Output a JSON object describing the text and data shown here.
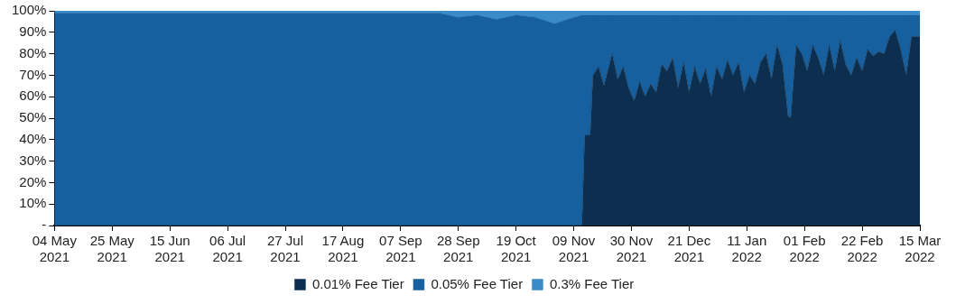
{
  "chart_data": {
    "type": "area",
    "stacked": true,
    "legend": "bottom",
    "grid": false,
    "marker": "none",
    "x": [
      "2021-05-04",
      "2021-05-18",
      "2021-06-01",
      "2021-06-15",
      "2021-06-29",
      "2021-07-13",
      "2021-07-27",
      "2021-08-10",
      "2021-08-24",
      "2021-09-07",
      "2021-09-21",
      "2021-09-28",
      "2021-10-05",
      "2021-10-12",
      "2021-10-19",
      "2021-10-26",
      "2021-11-02",
      "2021-11-09",
      "2021-11-12",
      "2021-11-13",
      "2021-11-15",
      "2021-11-16",
      "2021-11-18",
      "2021-11-20",
      "2021-11-21",
      "2021-11-23",
      "2021-11-25",
      "2021-11-27",
      "2021-11-29",
      "2021-12-01",
      "2021-12-03",
      "2021-12-05",
      "2021-12-07",
      "2021-12-09",
      "2021-12-11",
      "2021-12-13",
      "2021-12-15",
      "2021-12-17",
      "2021-12-19",
      "2021-12-21",
      "2021-12-23",
      "2021-12-25",
      "2021-12-27",
      "2021-12-29",
      "2021-12-31",
      "2022-01-02",
      "2022-01-04",
      "2022-01-06",
      "2022-01-08",
      "2022-01-10",
      "2022-01-12",
      "2022-01-14",
      "2022-01-16",
      "2022-01-18",
      "2022-01-20",
      "2022-01-22",
      "2022-01-24",
      "2022-01-26",
      "2022-01-27",
      "2022-01-29",
      "2022-01-31",
      "2022-02-02",
      "2022-02-04",
      "2022-02-06",
      "2022-02-08",
      "2022-02-10",
      "2022-02-12",
      "2022-02-14",
      "2022-02-16",
      "2022-02-18",
      "2022-02-20",
      "2022-02-22",
      "2022-02-24",
      "2022-02-26",
      "2022-02-28",
      "2022-03-02",
      "2022-03-04",
      "2022-03-06",
      "2022-03-08",
      "2022-03-10",
      "2022-03-12",
      "2022-03-15"
    ],
    "series": [
      {
        "name": "0.01% Fee Tier",
        "color": "#0d2f4f",
        "values": [
          0,
          0,
          0,
          0,
          0,
          0,
          0,
          0,
          0,
          0,
          0,
          0,
          0,
          0,
          0,
          0,
          0,
          0,
          0,
          42,
          42,
          70,
          74,
          65,
          70,
          80,
          68,
          74,
          64,
          58,
          67,
          60,
          66,
          62,
          75,
          72,
          78,
          64,
          76,
          62,
          74,
          66,
          73,
          60,
          74,
          68,
          77,
          70,
          76,
          62,
          70,
          66,
          76,
          80,
          68,
          84,
          75,
          51,
          50,
          84,
          80,
          72,
          84,
          78,
          70,
          84,
          72,
          86,
          75,
          70,
          78,
          72,
          82,
          79,
          81,
          80,
          88,
          91,
          82,
          70,
          88,
          88
        ]
      },
      {
        "name": "0.05% Fee Tier",
        "color": "#1660a0",
        "values": [
          99,
          99,
          99,
          99,
          99,
          99,
          99,
          99,
          99,
          99,
          99,
          97,
          98,
          96,
          98,
          97,
          94,
          97,
          98,
          56,
          56,
          28,
          24,
          33,
          28,
          18,
          30,
          24,
          34,
          40,
          31,
          38,
          32,
          36,
          23,
          26,
          20,
          34,
          22,
          36,
          24,
          32,
          25,
          38,
          24,
          30,
          21,
          28,
          22,
          36,
          28,
          32,
          22,
          18,
          30,
          14,
          23,
          47,
          48,
          14,
          18,
          26,
          14,
          20,
          28,
          14,
          26,
          12,
          23,
          28,
          20,
          26,
          16,
          19,
          17,
          18,
          10,
          7,
          16,
          28,
          10,
          10
        ]
      },
      {
        "name": "0.3% Fee Tier",
        "color": "#3a8cc8",
        "values": [
          1,
          1,
          1,
          1,
          1,
          1,
          1,
          1,
          1,
          1,
          1,
          3,
          2,
          4,
          2,
          3,
          6,
          3,
          2,
          2,
          2,
          2,
          2,
          2,
          2,
          2,
          2,
          2,
          2,
          2,
          2,
          2,
          2,
          2,
          2,
          2,
          2,
          2,
          2,
          2,
          2,
          2,
          2,
          2,
          2,
          2,
          2,
          2,
          2,
          2,
          2,
          2,
          2,
          2,
          2,
          2,
          2,
          2,
          2,
          2,
          2,
          2,
          2,
          2,
          2,
          2,
          2,
          2,
          2,
          2,
          2,
          2,
          2,
          2,
          2,
          2,
          2,
          2,
          2,
          2,
          2,
          2
        ]
      }
    ],
    "xlim": [
      "2021-05-04",
      "2022-03-15"
    ],
    "xticks": [
      {
        "value": "2021-05-04",
        "label": "04 May 2021"
      },
      {
        "value": "2021-05-25",
        "label": "25 May 2021"
      },
      {
        "value": "2021-06-15",
        "label": "15 Jun 2021"
      },
      {
        "value": "2021-07-06",
        "label": "06 Jul 2021"
      },
      {
        "value": "2021-07-27",
        "label": "27 Jul 2021"
      },
      {
        "value": "2021-08-17",
        "label": "17 Aug 2021"
      },
      {
        "value": "2021-09-07",
        "label": "07 Sep 2021"
      },
      {
        "value": "2021-09-28",
        "label": "28 Sep 2021"
      },
      {
        "value": "2021-10-19",
        "label": "19 Oct 2021"
      },
      {
        "value": "2021-11-09",
        "label": "09 Nov 2021"
      },
      {
        "value": "2021-11-30",
        "label": "30 Nov 2021"
      },
      {
        "value": "2021-12-21",
        "label": "21 Dec 2021"
      },
      {
        "value": "2022-01-11",
        "label": "11 Jan 2022"
      },
      {
        "value": "2022-02-01",
        "label": "01 Feb 2022"
      },
      {
        "value": "2022-02-22",
        "label": "22 Feb 2022"
      },
      {
        "value": "2022-03-15",
        "label": "15 Mar 2022"
      }
    ],
    "ylim": [
      0,
      100
    ],
    "yticks": [
      {
        "value": 0,
        "label": "-"
      },
      {
        "value": 10,
        "label": "10%"
      },
      {
        "value": 20,
        "label": "20%"
      },
      {
        "value": 30,
        "label": "30%"
      },
      {
        "value": 40,
        "label": "40%"
      },
      {
        "value": 50,
        "label": "50%"
      },
      {
        "value": 60,
        "label": "60%"
      },
      {
        "value": 70,
        "label": "70%"
      },
      {
        "value": 80,
        "label": "80%"
      },
      {
        "value": 90,
        "label": "90%"
      },
      {
        "value": 100,
        "label": "100%"
      }
    ]
  }
}
